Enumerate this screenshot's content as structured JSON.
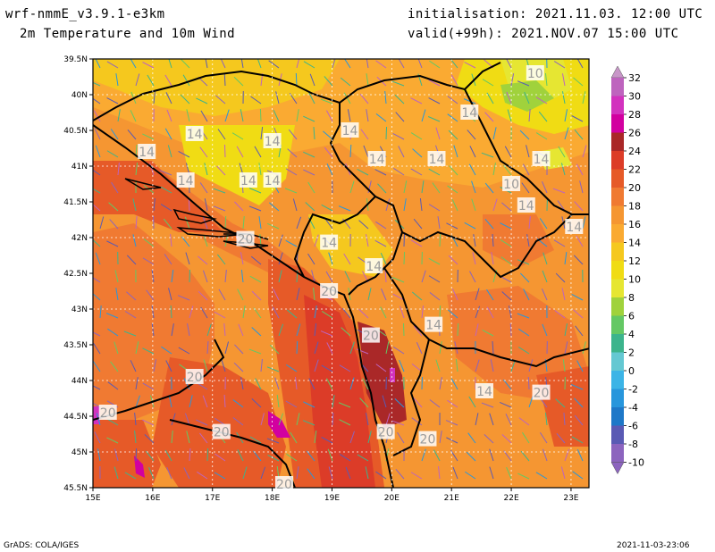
{
  "header": {
    "model": "wrf-nmmE_v3.9.1-e3km",
    "field": "2m Temperature and 10m Wind",
    "initialisation": "initialisation: 2021.11.03. 12:00 UTC",
    "valid": "valid(+99h): 2021.NOV.07 15:00 UTC"
  },
  "footer": {
    "left": "GrADS: COLA/IGES",
    "right": "2021-11-03-23:06"
  },
  "map": {
    "lon_range": [
      15,
      23.3
    ],
    "lat_range": [
      39.5,
      45.5
    ],
    "lon_ticks": [
      "15E",
      "16E",
      "17E",
      "18E",
      "19E",
      "20E",
      "21E",
      "22E",
      "23E"
    ],
    "lat_ticks": [
      "39.5N",
      "40N",
      "40.5N",
      "41N",
      "41.5N",
      "42N",
      "42.5N",
      "43N",
      "43.5N",
      "44N",
      "44.5N",
      "45N",
      "45.5N"
    ],
    "contour_labels": [
      {
        "text": "10",
        "lon": 22.4,
        "lat": 45.3
      },
      {
        "text": "14",
        "lon": 21.3,
        "lat": 44.75
      },
      {
        "text": "14",
        "lon": 16.7,
        "lat": 44.45
      },
      {
        "text": "14",
        "lon": 18.0,
        "lat": 44.35
      },
      {
        "text": "14",
        "lon": 19.3,
        "lat": 44.5
      },
      {
        "text": "14",
        "lon": 15.9,
        "lat": 44.2
      },
      {
        "text": "14",
        "lon": 19.75,
        "lat": 44.1
      },
      {
        "text": "14",
        "lon": 20.75,
        "lat": 44.1
      },
      {
        "text": "14",
        "lon": 22.5,
        "lat": 44.1
      },
      {
        "text": "14",
        "lon": 16.55,
        "lat": 43.8
      },
      {
        "text": "14",
        "lon": 17.6,
        "lat": 43.8
      },
      {
        "text": "14",
        "lon": 18.0,
        "lat": 43.8
      },
      {
        "text": "10",
        "lon": 22.0,
        "lat": 43.75
      },
      {
        "text": "14",
        "lon": 22.25,
        "lat": 43.45
      },
      {
        "text": "14",
        "lon": 23.05,
        "lat": 43.15
      },
      {
        "text": "20",
        "lon": 17.55,
        "lat": 42.98
      },
      {
        "text": "14",
        "lon": 18.95,
        "lat": 42.93
      },
      {
        "text": "14",
        "lon": 19.7,
        "lat": 42.6
      },
      {
        "text": "20",
        "lon": 18.95,
        "lat": 42.25
      },
      {
        "text": "14",
        "lon": 20.7,
        "lat": 41.78
      },
      {
        "text": "20",
        "lon": 19.65,
        "lat": 41.63
      },
      {
        "text": "20",
        "lon": 16.7,
        "lat": 41.05
      },
      {
        "text": "14",
        "lon": 21.55,
        "lat": 40.85
      },
      {
        "text": "20",
        "lon": 22.5,
        "lat": 40.83
      },
      {
        "text": "20",
        "lon": 15.25,
        "lat": 40.55
      },
      {
        "text": "20",
        "lon": 17.15,
        "lat": 40.28
      },
      {
        "text": "20",
        "lon": 19.9,
        "lat": 40.28
      },
      {
        "text": "20",
        "lon": 20.6,
        "lat": 40.18
      },
      {
        "text": "20",
        "lon": 18.2,
        "lat": 39.55
      }
    ]
  },
  "colorbar": {
    "labels": [
      "32",
      "30",
      "28",
      "26",
      "24",
      "22",
      "20",
      "18",
      "16",
      "14",
      "12",
      "10",
      "8",
      "6",
      "4",
      "2",
      "0",
      "-2",
      "-4",
      "-6",
      "-8",
      "-10"
    ],
    "colors": [
      "#c896c8",
      "#be64be",
      "#d232be",
      "#d200a0",
      "#aa2828",
      "#dc3c28",
      "#e65a28",
      "#f07a32",
      "#f59632",
      "#faaa32",
      "#f5c81e",
      "#f0dc14",
      "#e6e632",
      "#a0d23c",
      "#64c864",
      "#3cb48c",
      "#64c8d2",
      "#3cb4e6",
      "#2896dc",
      "#1e78c8",
      "#5a5ab4",
      "#8c64be"
    ]
  }
}
